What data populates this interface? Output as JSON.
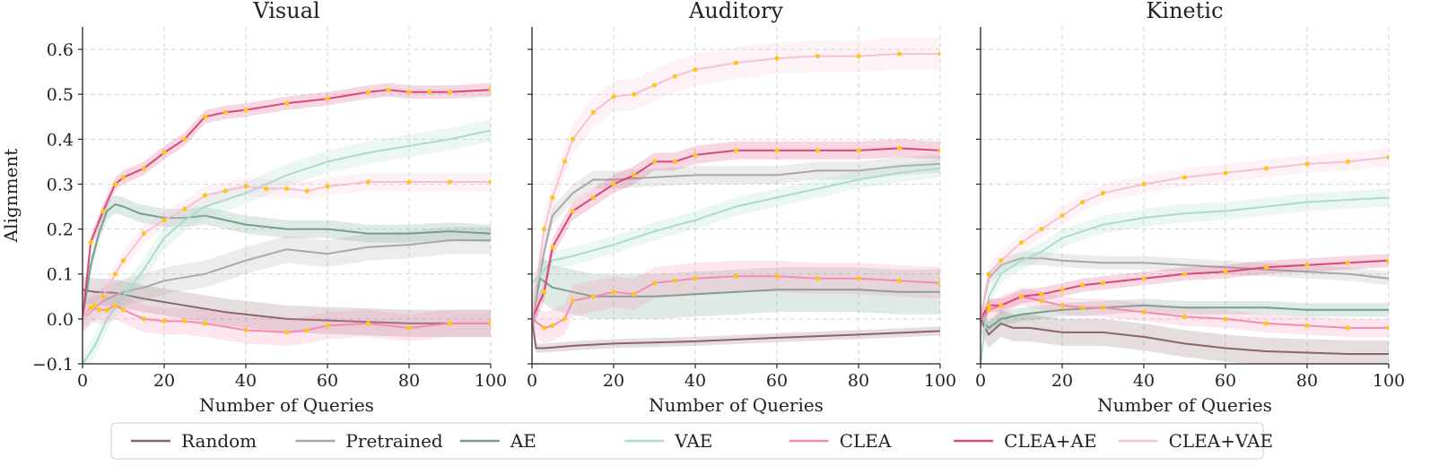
{
  "chart_data": {
    "type": "line",
    "ylabel": "Alignment",
    "xlabel": "Number of Queries",
    "xlim": [
      0,
      100
    ],
    "ylim": [
      -0.1,
      0.65
    ],
    "xticks": [
      "0",
      "20",
      "40",
      "60",
      "80",
      "100"
    ],
    "yticks": [
      "−0.1",
      "0.0",
      "0.1",
      "0.2",
      "0.3",
      "0.4",
      "0.5",
      "0.6"
    ],
    "ytick_values": [
      -0.1,
      0.0,
      0.1,
      0.2,
      0.3,
      0.4,
      0.5,
      0.6
    ],
    "xtick_values": [
      0,
      20,
      40,
      60,
      80,
      100
    ],
    "grid": true,
    "legend_position": "bottom-center",
    "legend": [
      {
        "key": "random",
        "label": "Random",
        "color": "#8a6468"
      },
      {
        "key": "pretrained",
        "label": "Pretrained",
        "color": "#a8a8a8"
      },
      {
        "key": "ae",
        "label": "AE",
        "color": "#72a08a"
      },
      {
        "key": "vae",
        "label": "VAE",
        "color": "#a9dccb"
      },
      {
        "key": "clea",
        "label": "CLEA",
        "color": "#f48bb0"
      },
      {
        "key": "clea_ae",
        "label": "CLEA+AE",
        "color": "#d9487a"
      },
      {
        "key": "clea_vae",
        "label": "CLEA+VAE",
        "color": "#f6c2d2"
      }
    ],
    "marker_color": "#ffc61a",
    "panels": [
      {
        "title": "Visual",
        "series": [
          {
            "name": "Random",
            "key": "random",
            "band": 0.03,
            "markers": false,
            "x": [
              0,
              3,
              8,
              15,
              25,
              35,
              50,
              65,
              80,
              100
            ],
            "y": [
              0.065,
              0.06,
              0.058,
              0.045,
              0.03,
              0.015,
              0.0,
              -0.005,
              -0.01,
              -0.01
            ]
          },
          {
            "name": "Pretrained",
            "key": "pretrained",
            "band": 0.03,
            "markers": false,
            "x": [
              0,
              5,
              10,
              15,
              20,
              30,
              40,
              50,
              60,
              70,
              80,
              90,
              100
            ],
            "y": [
              0.0,
              0.04,
              0.06,
              0.07,
              0.085,
              0.1,
              0.13,
              0.155,
              0.145,
              0.16,
              0.165,
              0.175,
              0.175
            ]
          },
          {
            "name": "AE",
            "key": "ae",
            "band": 0.02,
            "markers": false,
            "x": [
              0,
              2,
              4,
              6,
              8,
              10,
              14,
              20,
              25,
              30,
              40,
              50,
              60,
              70,
              80,
              90,
              100
            ],
            "y": [
              0.0,
              0.12,
              0.19,
              0.24,
              0.255,
              0.25,
              0.235,
              0.225,
              0.225,
              0.23,
              0.21,
              0.2,
              0.2,
              0.19,
              0.19,
              0.195,
              0.19
            ]
          },
          {
            "name": "VAE",
            "key": "vae",
            "band": 0.025,
            "markers": false,
            "x": [
              0,
              3,
              6,
              10,
              15,
              20,
              25,
              30,
              40,
              50,
              60,
              70,
              80,
              90,
              100
            ],
            "y": [
              -0.1,
              -0.06,
              0.0,
              0.05,
              0.11,
              0.18,
              0.22,
              0.25,
              0.28,
              0.32,
              0.35,
              0.37,
              0.385,
              0.4,
              0.42
            ]
          },
          {
            "name": "CLEA",
            "key": "clea",
            "band": 0.03,
            "markers": true,
            "x": [
              0,
              2,
              4,
              6,
              8,
              10,
              15,
              20,
              25,
              30,
              40,
              50,
              55,
              60,
              70,
              80,
              90,
              100
            ],
            "y": [
              0.0,
              0.025,
              0.02,
              0.02,
              0.03,
              0.02,
              0.0,
              -0.005,
              -0.005,
              -0.01,
              -0.025,
              -0.03,
              -0.025,
              -0.015,
              -0.01,
              -0.02,
              -0.01,
              -0.01
            ]
          },
          {
            "name": "CLEA+AE",
            "key": "clea_ae",
            "band": 0.015,
            "markers": true,
            "x": [
              0,
              2,
              5,
              8,
              10,
              15,
              20,
              25,
              30,
              35,
              40,
              50,
              60,
              70,
              75,
              80,
              85,
              90,
              100
            ],
            "y": [
              0.0,
              0.17,
              0.24,
              0.3,
              0.315,
              0.335,
              0.37,
              0.4,
              0.45,
              0.46,
              0.465,
              0.48,
              0.49,
              0.505,
              0.51,
              0.505,
              0.505,
              0.505,
              0.51
            ]
          },
          {
            "name": "CLEA+VAE",
            "key": "clea_vae",
            "band": 0.02,
            "markers": true,
            "x": [
              0,
              3,
              5,
              8,
              10,
              15,
              20,
              25,
              30,
              35,
              40,
              45,
              50,
              55,
              60,
              70,
              80,
              90,
              100
            ],
            "y": [
              0.0,
              0.03,
              0.05,
              0.1,
              0.13,
              0.19,
              0.22,
              0.245,
              0.275,
              0.285,
              0.295,
              0.29,
              0.29,
              0.285,
              0.295,
              0.305,
              0.305,
              0.305,
              0.305
            ]
          }
        ]
      },
      {
        "title": "Auditory",
        "series": [
          {
            "name": "Random",
            "key": "random",
            "band": 0.01,
            "markers": false,
            "x": [
              0,
              1,
              3,
              10,
              20,
              40,
              60,
              80,
              100
            ],
            "y": [
              0.0,
              -0.065,
              -0.065,
              -0.06,
              -0.055,
              -0.05,
              -0.042,
              -0.035,
              -0.027
            ]
          },
          {
            "name": "Pretrained",
            "key": "pretrained",
            "band": 0.02,
            "markers": false,
            "x": [
              0,
              3,
              5,
              10,
              15,
              20,
              30,
              40,
              50,
              60,
              70,
              80,
              90,
              100
            ],
            "y": [
              0.0,
              0.15,
              0.23,
              0.28,
              0.31,
              0.31,
              0.315,
              0.32,
              0.32,
              0.32,
              0.33,
              0.33,
              0.34,
              0.345
            ]
          },
          {
            "name": "AE",
            "key": "ae",
            "band": 0.05,
            "markers": false,
            "x": [
              0,
              2,
              5,
              10,
              15,
              20,
              30,
              40,
              50,
              60,
              70,
              80,
              90,
              100
            ],
            "y": [
              0.0,
              0.09,
              0.07,
              0.06,
              0.05,
              0.05,
              0.05,
              0.055,
              0.06,
              0.065,
              0.065,
              0.065,
              0.06,
              0.06
            ]
          },
          {
            "name": "VAE",
            "key": "vae",
            "band": 0.02,
            "markers": false,
            "x": [
              0,
              5,
              10,
              20,
              30,
              40,
              50,
              60,
              70,
              80,
              90,
              100
            ],
            "y": [
              0.08,
              0.13,
              0.14,
              0.165,
              0.195,
              0.22,
              0.25,
              0.27,
              0.29,
              0.31,
              0.325,
              0.335
            ]
          },
          {
            "name": "CLEA",
            "key": "clea",
            "band": 0.035,
            "markers": true,
            "x": [
              0,
              3,
              5,
              8,
              10,
              15,
              20,
              25,
              30,
              35,
              40,
              50,
              60,
              70,
              80,
              90,
              100
            ],
            "y": [
              0.0,
              -0.02,
              -0.015,
              0.0,
              0.04,
              0.05,
              0.06,
              0.055,
              0.08,
              0.085,
              0.09,
              0.095,
              0.095,
              0.09,
              0.09,
              0.085,
              0.08
            ]
          },
          {
            "name": "CLEA+AE",
            "key": "clea_ae",
            "band": 0.02,
            "markers": true,
            "x": [
              0,
              3,
              5,
              10,
              15,
              20,
              25,
              30,
              35,
              40,
              50,
              60,
              70,
              80,
              90,
              100
            ],
            "y": [
              0.0,
              0.06,
              0.16,
              0.24,
              0.27,
              0.3,
              0.32,
              0.35,
              0.35,
              0.365,
              0.375,
              0.375,
              0.375,
              0.375,
              0.38,
              0.375
            ]
          },
          {
            "name": "CLEA+VAE",
            "key": "clea_vae",
            "band": 0.035,
            "markers": true,
            "x": [
              0,
              3,
              5,
              8,
              10,
              15,
              20,
              25,
              30,
              35,
              40,
              50,
              60,
              70,
              80,
              90,
              100
            ],
            "y": [
              0.0,
              0.2,
              0.27,
              0.35,
              0.4,
              0.46,
              0.495,
              0.5,
              0.52,
              0.54,
              0.555,
              0.57,
              0.58,
              0.585,
              0.585,
              0.59,
              0.59
            ]
          }
        ]
      },
      {
        "title": "Kinetic",
        "series": [
          {
            "name": "Random",
            "key": "random",
            "band": 0.03,
            "markers": false,
            "x": [
              0,
              2,
              5,
              8,
              12,
              20,
              30,
              40,
              50,
              60,
              70,
              80,
              90,
              100
            ],
            "y": [
              0.0,
              -0.035,
              -0.01,
              -0.02,
              -0.02,
              -0.03,
              -0.03,
              -0.04,
              -0.055,
              -0.065,
              -0.072,
              -0.075,
              -0.078,
              -0.078
            ]
          },
          {
            "name": "Pretrained",
            "key": "pretrained",
            "band": 0.015,
            "markers": false,
            "x": [
              0,
              2,
              5,
              10,
              15,
              20,
              30,
              40,
              50,
              60,
              70,
              80,
              90,
              100
            ],
            "y": [
              0.0,
              0.09,
              0.12,
              0.135,
              0.135,
              0.13,
              0.125,
              0.125,
              0.12,
              0.115,
              0.11,
              0.105,
              0.1,
              0.09
            ]
          },
          {
            "name": "AE",
            "key": "ae",
            "band": 0.015,
            "markers": false,
            "x": [
              0,
              2,
              5,
              10,
              15,
              20,
              30,
              40,
              50,
              60,
              70,
              80,
              90,
              100
            ],
            "y": [
              0.0,
              -0.02,
              0.0,
              0.01,
              0.015,
              0.02,
              0.025,
              0.03,
              0.025,
              0.025,
              0.025,
              0.02,
              0.02,
              0.02
            ]
          },
          {
            "name": "VAE",
            "key": "vae",
            "band": 0.02,
            "markers": false,
            "x": [
              0,
              2,
              5,
              10,
              15,
              20,
              30,
              40,
              50,
              60,
              70,
              80,
              90,
              100
            ],
            "y": [
              -0.1,
              0.05,
              0.1,
              0.13,
              0.15,
              0.18,
              0.21,
              0.225,
              0.235,
              0.24,
              0.25,
              0.26,
              0.265,
              0.27
            ]
          },
          {
            "name": "CLEA",
            "key": "clea",
            "band": 0.02,
            "markers": true,
            "x": [
              0,
              2,
              5,
              10,
              15,
              20,
              25,
              30,
              40,
              50,
              60,
              70,
              80,
              90,
              100
            ],
            "y": [
              0.0,
              0.02,
              0.03,
              0.05,
              0.04,
              0.03,
              0.025,
              0.025,
              0.015,
              0.005,
              0.0,
              -0.01,
              -0.015,
              -0.02,
              -0.02
            ]
          },
          {
            "name": "CLEA+AE",
            "key": "clea_ae",
            "band": 0.015,
            "markers": true,
            "x": [
              0,
              2,
              5,
              10,
              15,
              20,
              25,
              30,
              40,
              50,
              60,
              70,
              80,
              90,
              100
            ],
            "y": [
              0.0,
              0.03,
              0.03,
              0.05,
              0.055,
              0.065,
              0.075,
              0.08,
              0.09,
              0.1,
              0.105,
              0.115,
              0.12,
              0.125,
              0.13
            ]
          },
          {
            "name": "CLEA+VAE",
            "key": "clea_vae",
            "band": 0.02,
            "markers": true,
            "x": [
              0,
              2,
              5,
              10,
              15,
              20,
              25,
              30,
              40,
              50,
              60,
              70,
              80,
              90,
              100
            ],
            "y": [
              0.0,
              0.1,
              0.13,
              0.17,
              0.2,
              0.23,
              0.26,
              0.28,
              0.3,
              0.315,
              0.325,
              0.335,
              0.345,
              0.35,
              0.36
            ]
          }
        ]
      }
    ]
  }
}
